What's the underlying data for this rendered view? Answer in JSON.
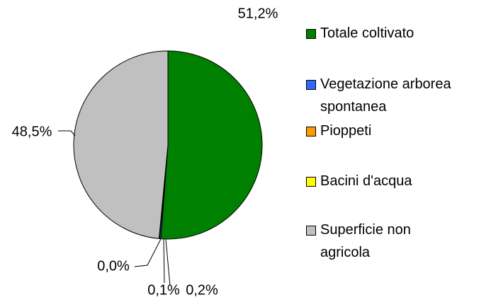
{
  "chart_data": {
    "type": "pie",
    "categories": [
      "Totale coltivato",
      "Vegetazione arborea spontanea",
      "Pioppeti",
      "Bacini d'acqua",
      "Superficie non agricola"
    ],
    "values": [
      51.2,
      0.2,
      0.1,
      0.0,
      48.5
    ],
    "value_labels": [
      "51,2%",
      "0,2%",
      "0,1%",
      "0,0%",
      "48,5%"
    ],
    "colors": [
      "#008000",
      "#3366ff",
      "#ff9900",
      "#ffff00",
      "#c0c0c0"
    ],
    "legend": "right"
  }
}
